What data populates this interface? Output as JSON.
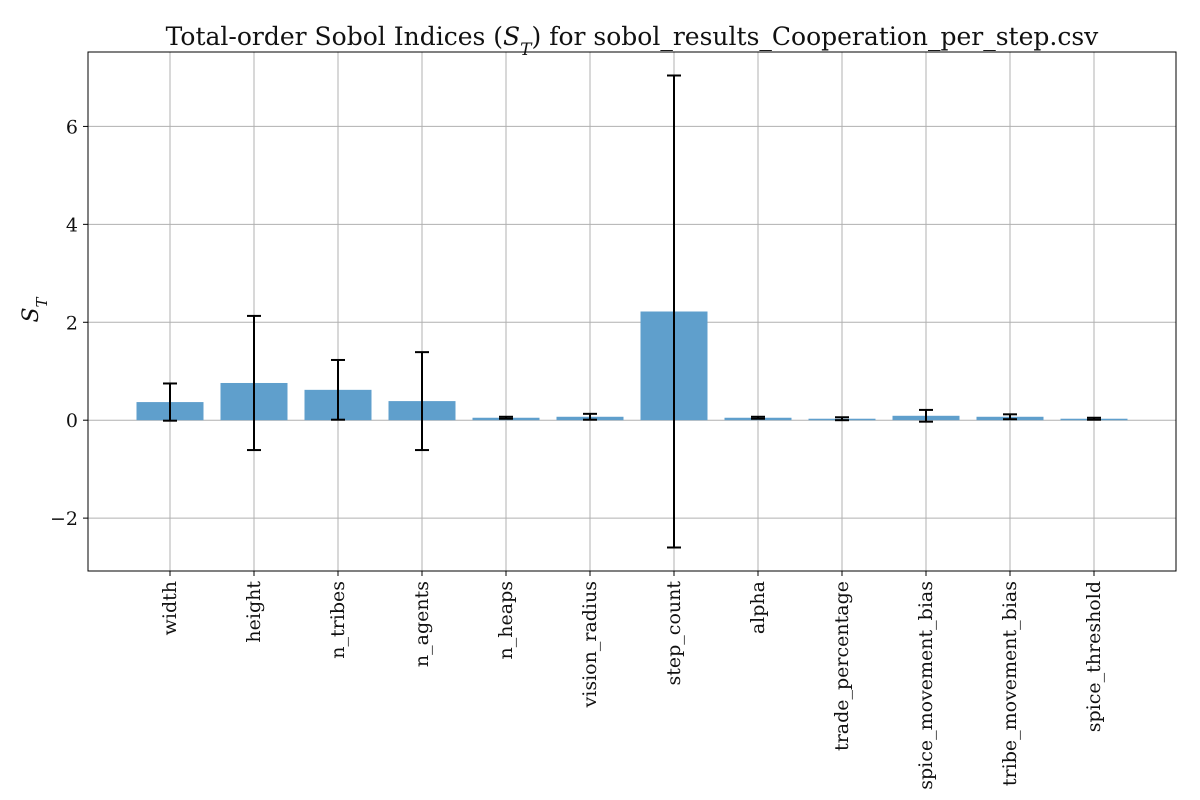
{
  "chart_data": {
    "type": "bar",
    "title_prefix": "Total-order Sobol Indices (",
    "title_symbol": "S",
    "title_subscript": "T",
    "title_suffix": ") for sobol_results_Cooperation_per_step.csv",
    "ylabel_symbol": "S",
    "ylabel_subscript": "T",
    "categories": [
      "width",
      "height",
      "n_tribes",
      "n_agents",
      "n_heaps",
      "vision_radius",
      "step_count",
      "alpha",
      "trade_percentage",
      "spice_movement_bias",
      "tribe_movement_bias",
      "spice_threshold"
    ],
    "values": [
      0.37,
      0.76,
      0.62,
      0.39,
      0.05,
      0.07,
      2.22,
      0.05,
      0.03,
      0.09,
      0.07,
      0.03
    ],
    "errors": [
      0.38,
      1.37,
      0.61,
      1.0,
      0.02,
      0.06,
      4.82,
      0.02,
      0.03,
      0.12,
      0.05,
      0.02
    ],
    "yticks": [
      -2,
      0,
      2,
      4,
      6
    ],
    "ytick_labels": [
      "−2",
      "0",
      "2",
      "4",
      "6"
    ],
    "ylim": [
      -3.08,
      7.52
    ],
    "grid": true,
    "bar_color": "#5f9fcc"
  }
}
